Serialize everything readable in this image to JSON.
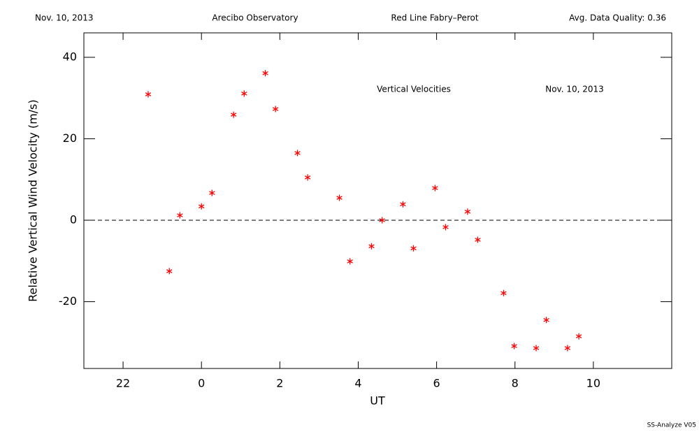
{
  "header": {
    "date": "Nov. 10, 2013",
    "site": "Arecibo Observatory",
    "instrument": "Red Line Fabry–Perot",
    "quality": "Avg. Data Quality: 0.36"
  },
  "footer": "SS-Analyze V05",
  "chart_data": {
    "type": "scatter",
    "annotations": [
      "Vertical Velocities",
      "Nov. 10, 2013"
    ],
    "x_label": "UT",
    "y_label": "Relative Vertical Wind Velocity (m/s)",
    "xlim": [
      -3,
      12
    ],
    "ylim": [
      -36.4,
      46
    ],
    "xticks": [
      {
        "value": -2,
        "label": "22"
      },
      0,
      2,
      4,
      6,
      8,
      10
    ],
    "yticks": [
      -20,
      0,
      20,
      40
    ],
    "reference_line": 0,
    "series": [
      {
        "name": "Vertical Velocity",
        "color": "#ff0000",
        "x": [
          -1.36,
          -0.82,
          -0.55,
          0.0,
          0.27,
          0.82,
          1.09,
          1.63,
          1.89,
          2.45,
          2.71,
          3.52,
          3.79,
          4.34,
          4.61,
          5.14,
          5.41,
          5.96,
          6.23,
          6.79,
          7.05,
          7.71,
          7.98,
          8.54,
          8.8,
          9.34,
          9.63
        ],
        "values": [
          30.9,
          -12.5,
          1.2,
          3.4,
          6.7,
          25.9,
          31.1,
          36.1,
          27.3,
          16.5,
          10.5,
          5.5,
          -10.1,
          -6.4,
          0.0,
          3.9,
          -6.9,
          7.9,
          -1.7,
          2.1,
          -4.8,
          -17.9,
          -30.9,
          -31.4,
          -24.5,
          -31.4,
          -28.5
        ]
      }
    ]
  }
}
